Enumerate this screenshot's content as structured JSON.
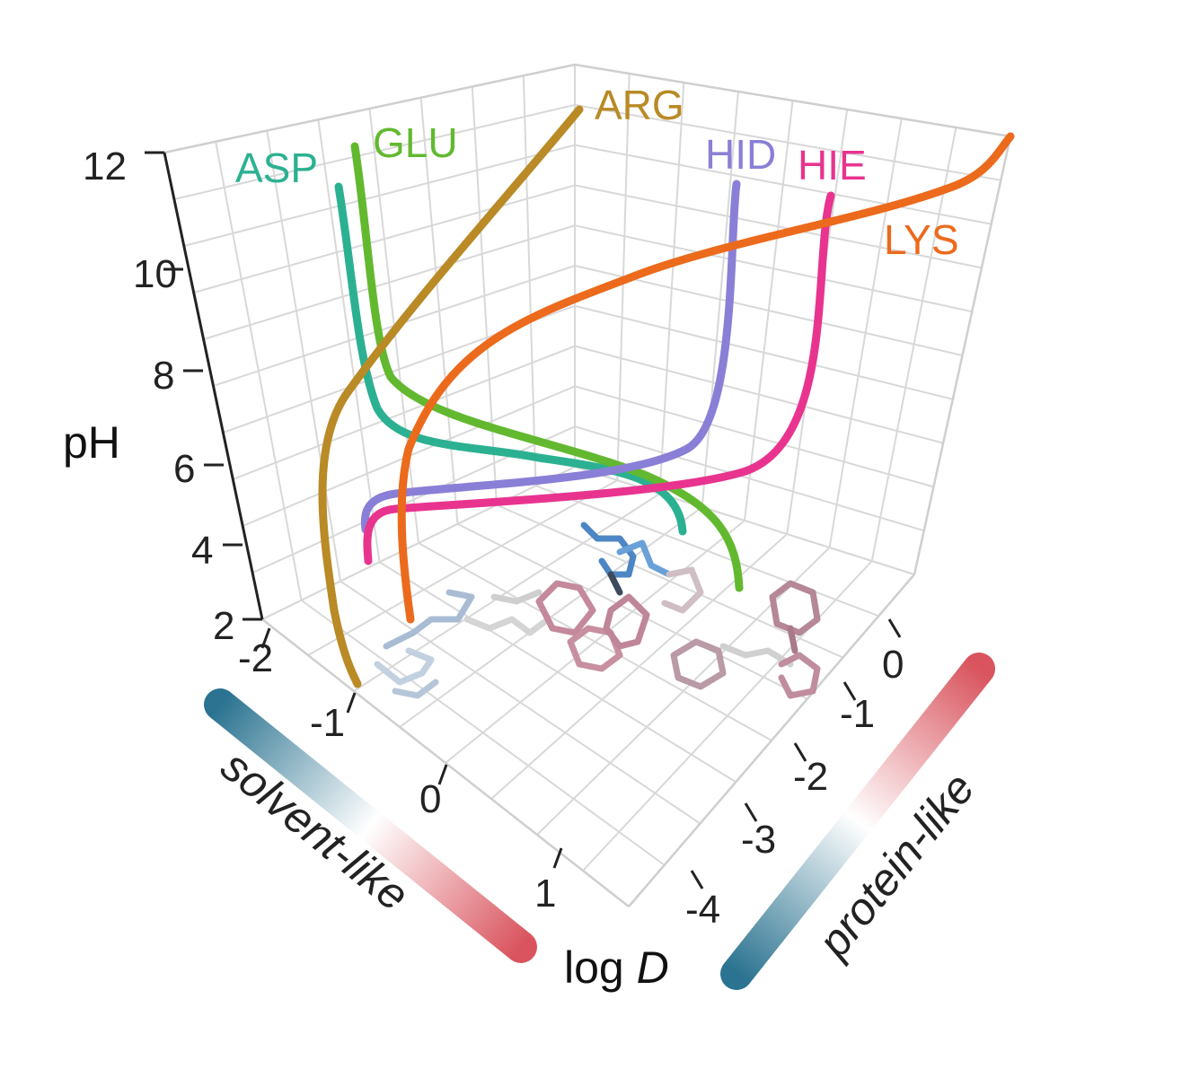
{
  "chart_data": {
    "type": "line",
    "title": "",
    "zlabel": "pH",
    "xlabel_prefix": "log ",
    "xlabel_var": "D",
    "z_range": [
      2,
      12
    ],
    "z_ticks": [
      "2",
      "4",
      "6",
      "8",
      "10",
      "12"
    ],
    "x_ticks": [
      "-2",
      "-1",
      "0",
      "1"
    ],
    "y_ticks": [
      "0",
      "-1",
      "-2",
      "-3",
      "-4"
    ],
    "grid": true,
    "colorbars": [
      {
        "label": "solvent-like",
        "from": "#2b7390",
        "mid": "#ffffff",
        "to": "#d9545e"
      },
      {
        "label": "protein-like",
        "from": "#2b7390",
        "mid": "#ffffff",
        "to": "#d9545e"
      }
    ],
    "series": [
      {
        "name": "ASP",
        "color": "#2bb191"
      },
      {
        "name": "GLU",
        "color": "#62b92f"
      },
      {
        "name": "ARG",
        "color": "#b98a25"
      },
      {
        "name": "HID",
        "color": "#8a7fd6"
      },
      {
        "name": "HIE",
        "color": "#e8348f"
      },
      {
        "name": "LYS",
        "color": "#ec6a1c"
      }
    ]
  }
}
